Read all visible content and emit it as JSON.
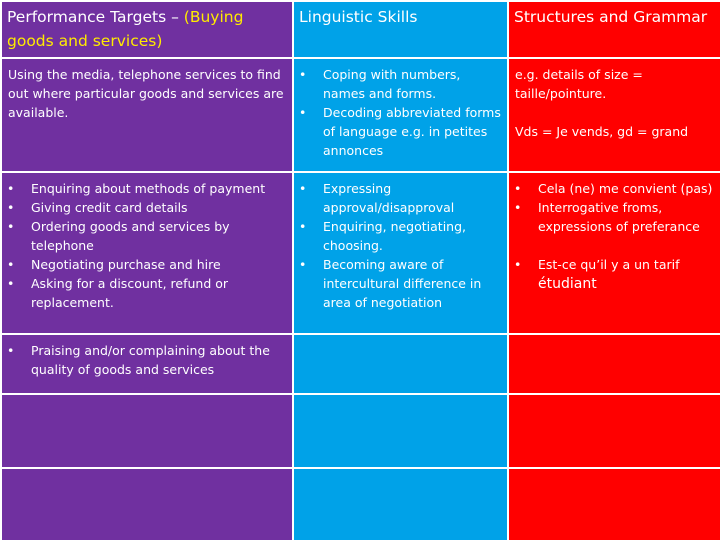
{
  "headers": {
    "col1_main": "Performance Targets – ",
    "col1_highlight": "(Buying goods and services)",
    "col2": "Linguistic Skills",
    "col3": "Structures and Grammar"
  },
  "row1": {
    "col1": "Using the media, telephone services to find out where particular goods and services are available.",
    "col2_items": [
      "Coping with numbers, names and forms.",
      "Decoding abbreviated forms of language e.g. in petites annonces"
    ],
    "col3_line1": "e.g. details of size = taille/pointure.",
    "col3_line2": "Vds = Je vends, gd = grand"
  },
  "row2": {
    "col1_items": [
      "Enquiring about methods of payment",
      "Giving credit card details",
      "Ordering goods and services by telephone",
      "Negotiating purchase and hire",
      "Asking for a discount, refund or replacement."
    ],
    "col2_items": [
      "Expressing approval/disapproval",
      "Enquiring, negotiating, choosing.",
      "Becoming aware of intercultural difference in area of negotiation"
    ],
    "col3_items": [
      "Cela (ne) me convient (pas)",
      "Interrogative froms, expressions of preferance",
      "Est-ce qu’il y a un tarif"
    ],
    "col3_item3_extra": "étudiant"
  },
  "row3": {
    "col1_items": [
      "Praising and/or complaining about the quality of goods and services"
    ]
  },
  "bullet": "•",
  "colors": {
    "purple": "#7030a0",
    "blue": "#00a2e8",
    "red": "#ff0000",
    "highlight": "#ffeb00"
  }
}
